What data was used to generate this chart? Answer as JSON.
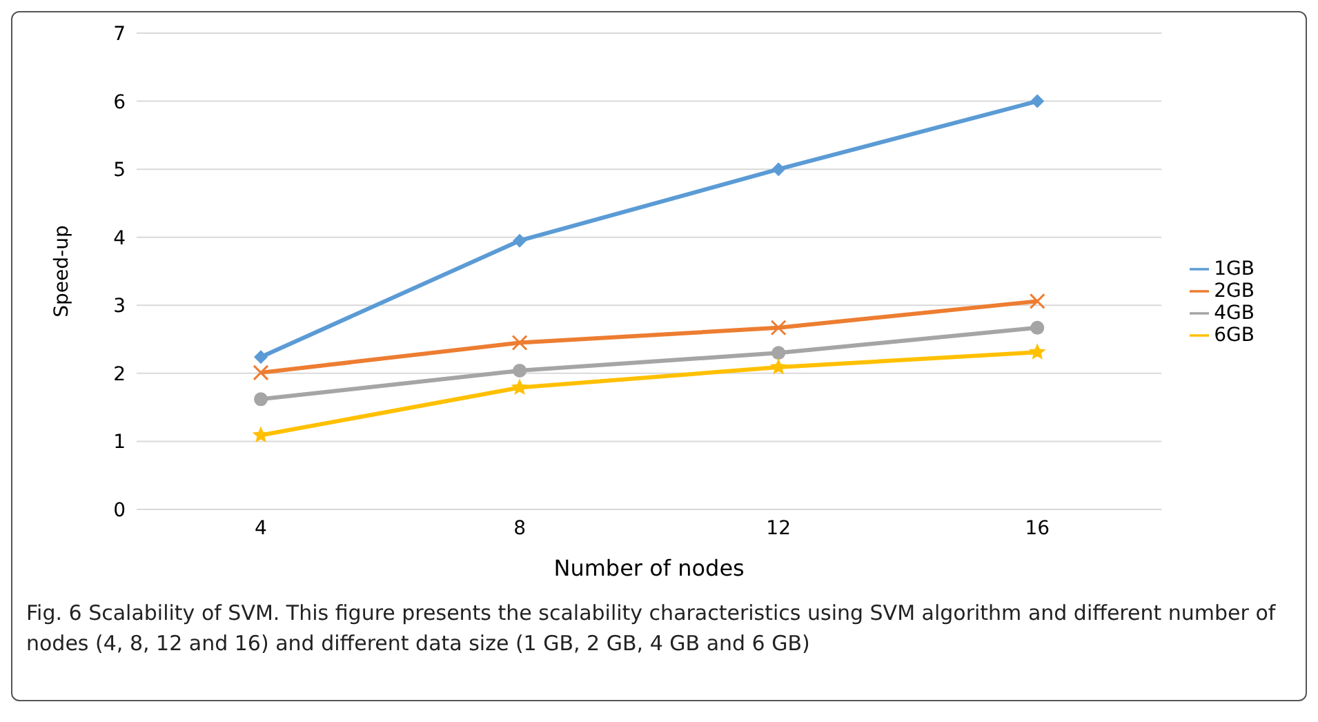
{
  "chart_data": {
    "type": "line",
    "xlabel": "Number  of nodes",
    "ylabel": "Speed-up",
    "categories": [
      "4",
      "8",
      "12",
      "16"
    ],
    "series": [
      {
        "name": "1GB",
        "color": "#5b9bd5",
        "marker": "diamond",
        "values": [
          2.24,
          3.95,
          5.0,
          6.0
        ]
      },
      {
        "name": "2GB",
        "color": "#ed7d31",
        "marker": "cross",
        "values": [
          2.01,
          2.45,
          2.67,
          3.06
        ]
      },
      {
        "name": "4GB",
        "color": "#a5a5a5",
        "marker": "circle",
        "values": [
          1.62,
          2.04,
          2.3,
          2.67
        ]
      },
      {
        "name": "6GB",
        "color": "#ffc000",
        "marker": "star",
        "values": [
          1.09,
          1.79,
          2.09,
          2.31
        ]
      }
    ],
    "ylim": [
      0,
      7
    ],
    "yticks": [
      0,
      1,
      2,
      3,
      4,
      5,
      6,
      7
    ],
    "grid": "y",
    "legend": "right",
    "annotations": [
      "Fig. 6  Scalability of SVM. This figure presents the scalability characteristics using SVM algorithm and different number of nodes (4, 8, 12 and 16) and different data size (1 GB, 2 GB, 4 GB and 6 GB)"
    ]
  }
}
